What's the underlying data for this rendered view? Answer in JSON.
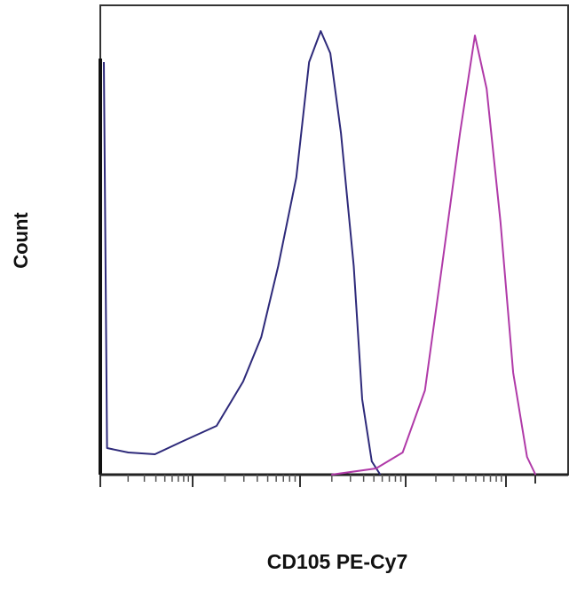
{
  "chart_data": {
    "type": "line",
    "title": "",
    "xlabel": "CD105 PE-Cy7",
    "ylabel": "Count",
    "x_scale": "log",
    "xlim": [
      0,
      4.4
    ],
    "ylim": [
      0,
      105
    ],
    "grid": false,
    "legend": "none",
    "series": [
      {
        "color": "#2e2a7a",
        "x": [
          0.0,
          0.03,
          0.23,
          0.48,
          0.73,
          1.06,
          1.31,
          1.48,
          1.64,
          1.81,
          1.93,
          2.04,
          2.13,
          2.23,
          2.35,
          2.43,
          2.52,
          2.6
        ],
        "y": [
          93,
          6,
          5,
          4.6,
          7.4,
          11,
          21,
          31,
          47,
          67,
          93,
          100,
          95,
          77,
          47,
          17,
          3,
          0
        ]
      },
      {
        "color": "#b03aa8",
        "x": [
          2.14,
          2.56,
          2.81,
          3.02,
          3.18,
          3.35,
          3.49,
          3.6,
          3.73,
          3.85,
          3.98,
          4.06
        ],
        "y": [
          0,
          1.4,
          5,
          19,
          47,
          77,
          99,
          87,
          57,
          23,
          4,
          0
        ]
      }
    ]
  }
}
